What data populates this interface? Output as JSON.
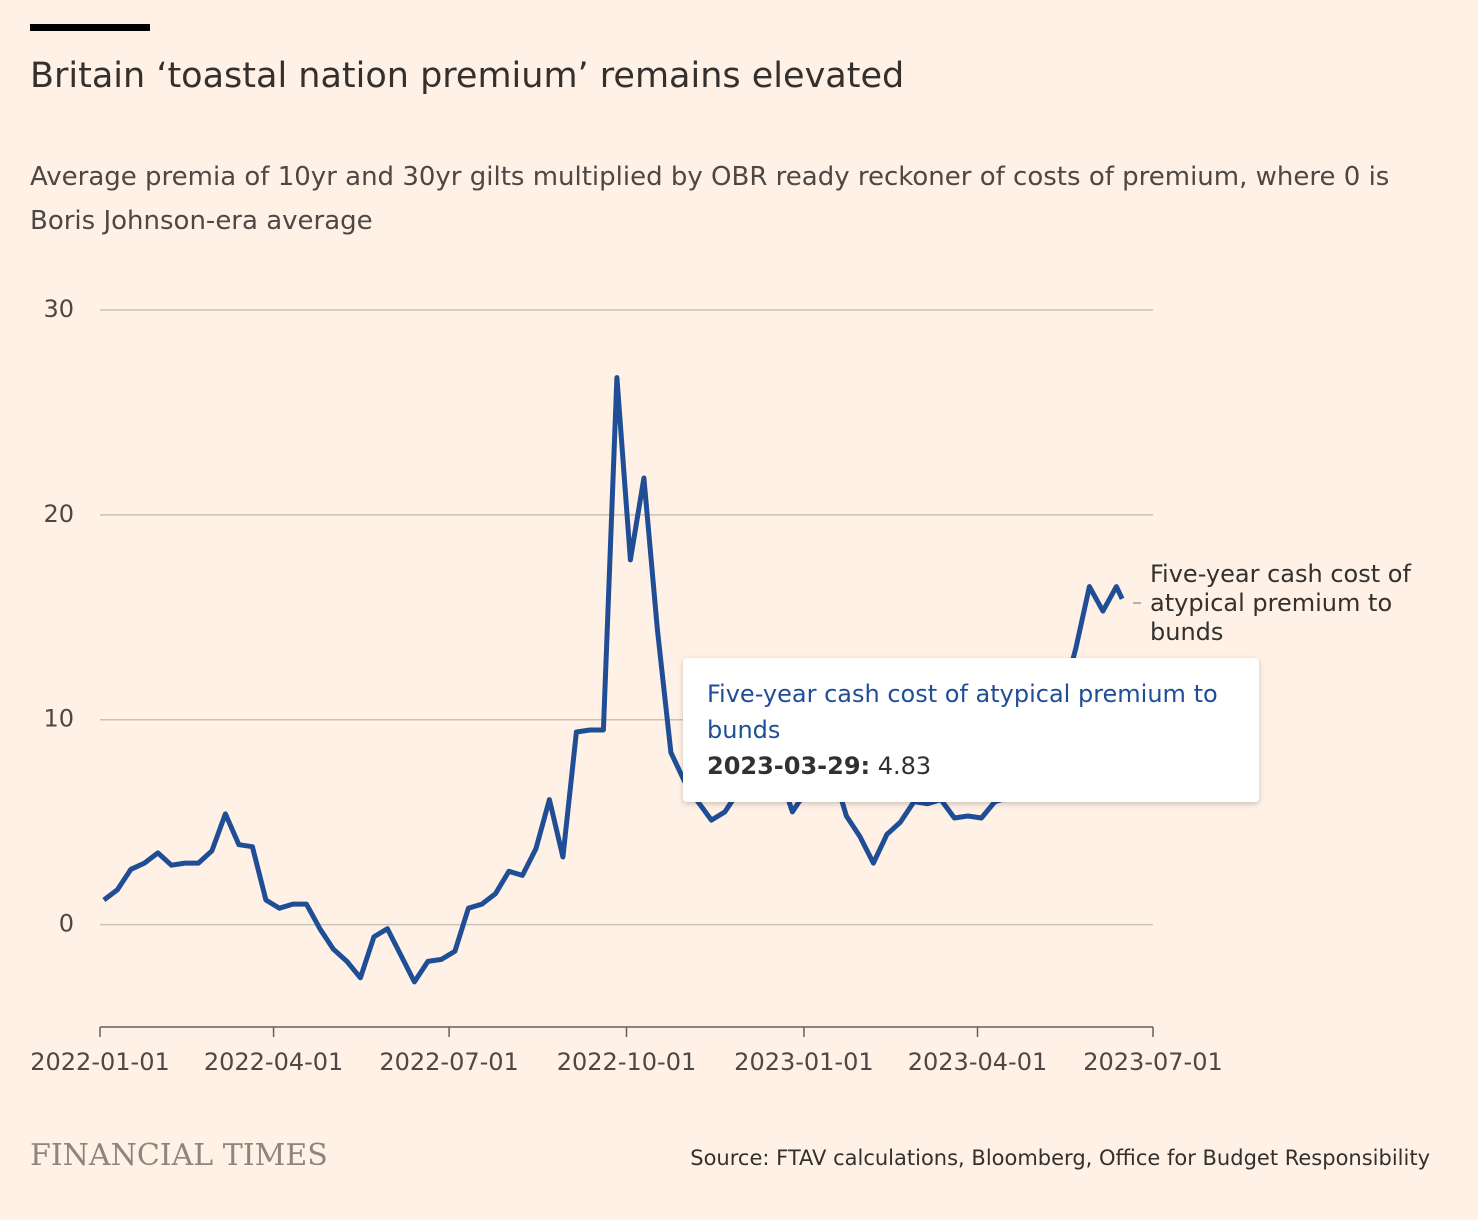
{
  "chart_data": {
    "type": "line",
    "title": "Britain ‘toastal nation premium’ remains elevated",
    "subtitle": "Average premia of 10yr and 30yr gilts multiplied by OBR ready reckoner of costs of premium, where 0 is Boris Johnson-era average",
    "source": "Source: FTAV calculations, Bloomberg, Office for Budget Responsibility",
    "brand": "FINANCIAL TIMES",
    "x": [
      "2022-01-03",
      "2022-01-10",
      "2022-01-17",
      "2022-01-24",
      "2022-01-31",
      "2022-02-07",
      "2022-02-14",
      "2022-02-21",
      "2022-02-28",
      "2022-03-07",
      "2022-03-14",
      "2022-03-21",
      "2022-03-28",
      "2022-04-04",
      "2022-04-11",
      "2022-04-18",
      "2022-04-25",
      "2022-05-02",
      "2022-05-09",
      "2022-05-16",
      "2022-05-23",
      "2022-05-30",
      "2022-06-06",
      "2022-06-13",
      "2022-06-20",
      "2022-06-27",
      "2022-07-04",
      "2022-07-11",
      "2022-07-18",
      "2022-07-25",
      "2022-08-01",
      "2022-08-08",
      "2022-08-15",
      "2022-08-22",
      "2022-08-29",
      "2022-09-05",
      "2022-09-12",
      "2022-09-19",
      "2022-09-26",
      "2022-10-03",
      "2022-10-10",
      "2022-10-17",
      "2022-10-24",
      "2022-10-31",
      "2022-11-07",
      "2022-11-14",
      "2022-11-21",
      "2022-11-28",
      "2022-12-05",
      "2022-12-12",
      "2022-12-19",
      "2022-12-26",
      "2023-01-02",
      "2023-01-09",
      "2023-01-16",
      "2023-01-23",
      "2023-01-30",
      "2023-02-06",
      "2023-02-13",
      "2023-02-20",
      "2023-02-27",
      "2023-03-06",
      "2023-03-13",
      "2023-03-20",
      "2023-03-27",
      "2023-04-03",
      "2023-04-10",
      "2023-04-17",
      "2023-04-24",
      "2023-05-01",
      "2023-05-08",
      "2023-05-15",
      "2023-05-22",
      "2023-05-29",
      "2023-06-05",
      "2023-06-12",
      "2023-06-15"
    ],
    "series": [
      {
        "name": "Five-year cash cost of atypical premium to bunds",
        "color": "#1f4e96",
        "values": [
          1.2,
          1.7,
          2.7,
          3.0,
          3.5,
          2.9,
          3.0,
          3.0,
          3.6,
          5.4,
          3.9,
          3.8,
          1.2,
          0.8,
          1.0,
          1.0,
          -0.2,
          -1.2,
          -1.8,
          -2.6,
          -0.6,
          -0.2,
          -1.5,
          -2.8,
          -1.8,
          -1.7,
          -1.3,
          0.8,
          1.0,
          1.5,
          2.6,
          2.4,
          3.7,
          6.1,
          3.3,
          9.4,
          9.5,
          9.5,
          26.7,
          17.8,
          21.8,
          14.4,
          8.4,
          7.0,
          6.0,
          5.1,
          5.5,
          6.5,
          8.5,
          8.0,
          7.5,
          5.5,
          6.5,
          7.8,
          7.5,
          5.3,
          4.3,
          3.0,
          4.4,
          5.0,
          6.0,
          5.9,
          6.1,
          5.2,
          5.3,
          5.2,
          6.0,
          6.2,
          7.5,
          8.5,
          10.0,
          11.0,
          13.5,
          16.5,
          15.3,
          16.5,
          15.9
        ]
      }
    ],
    "xlim": [
      "2022-01-01",
      "2023-07-01"
    ],
    "xticks": [
      "2022-01-01",
      "2022-04-01",
      "2022-07-01",
      "2022-10-01",
      "2023-01-01",
      "2023-04-01",
      "2023-07-01"
    ],
    "ylim": [
      -5,
      30
    ],
    "yticks": [
      0,
      10,
      20,
      30
    ],
    "grid": true,
    "tooltip": {
      "date_label": "2023-03-29:",
      "value": 4.83
    }
  }
}
